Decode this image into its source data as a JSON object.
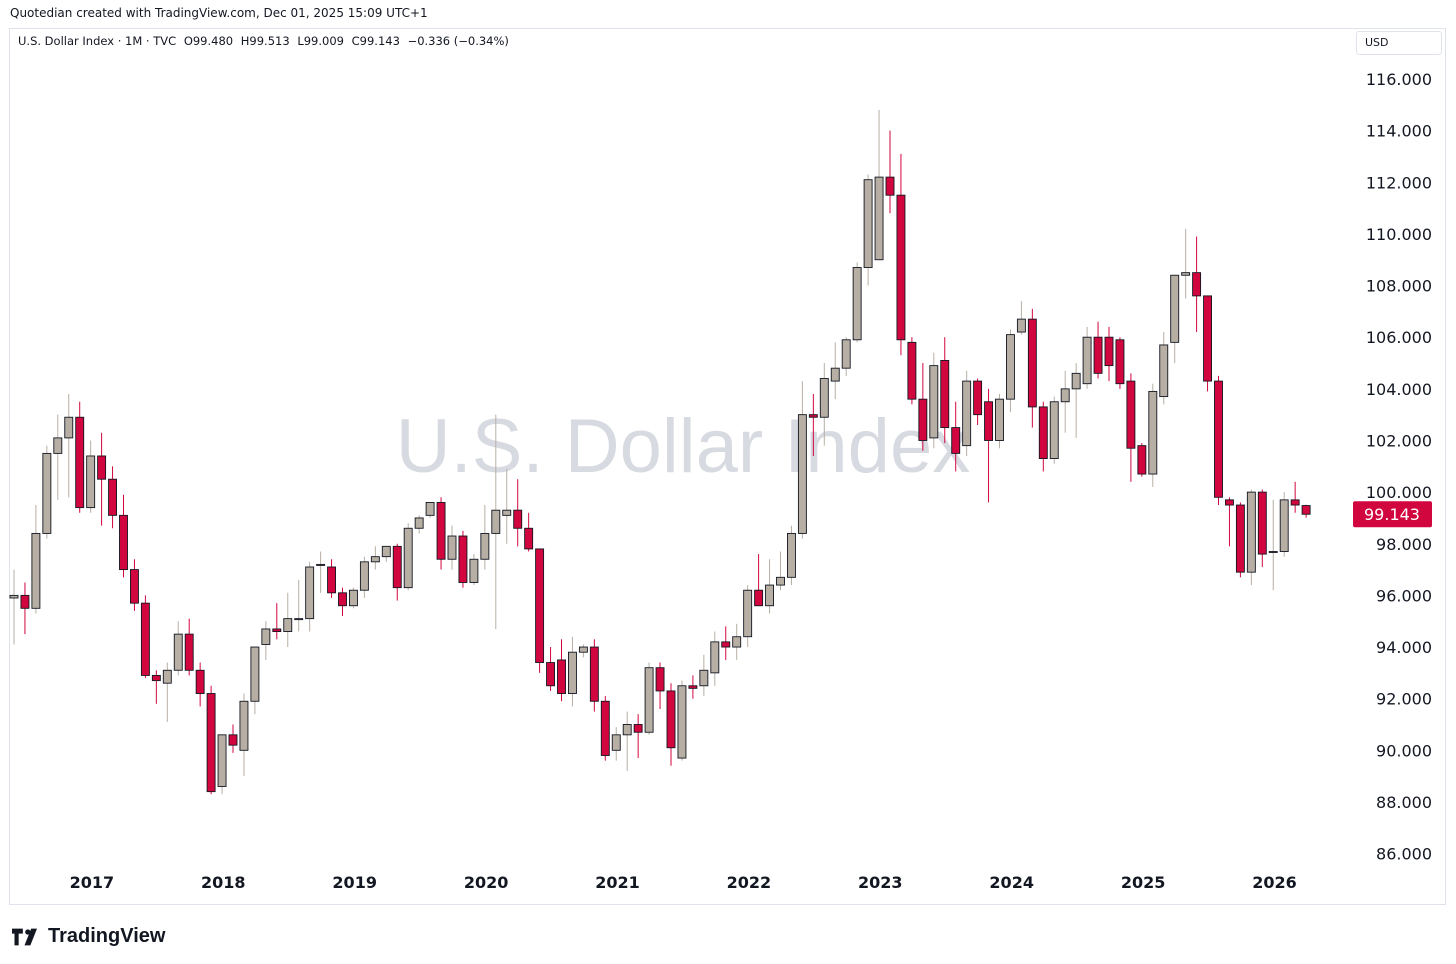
{
  "header": {
    "attribution": "Quotedian created with TradingView.com, Dec 01, 2025 15:09 UTC+1"
  },
  "legend": {
    "symbol": "U.S. Dollar Index · 1M · TVC",
    "open": "O99.480",
    "high": "H99.513",
    "low": "L99.009",
    "close": "C99.143",
    "change": "−0.336 (−0.34%)"
  },
  "currency_button": "USD",
  "watermark": "U.S. Dollar Index",
  "brand": "TradingView",
  "colors": {
    "up": "#b7afa4",
    "down": "#d2063e",
    "price_label_bg": "#d2063e",
    "grid": "#ffffff",
    "axis_text": "#131722"
  },
  "chart_data": {
    "type": "candlestick",
    "interval": "1M",
    "y_axis_ticks": [
      "116.000",
      "114.000",
      "112.000",
      "110.000",
      "108.000",
      "106.000",
      "104.000",
      "102.000",
      "100.000",
      "98.000",
      "96.000",
      "94.000",
      "92.000",
      "90.000",
      "88.000",
      "86.000"
    ],
    "ylim": [
      85,
      117
    ],
    "x_axis_ticks": [
      "2017",
      "2018",
      "2019",
      "2020",
      "2021",
      "2022",
      "2023",
      "2024",
      "2025",
      "2026"
    ],
    "last_price_label": "99.143",
    "candles": [
      {
        "t": "2016-11",
        "o": 95.9,
        "h": 97.0,
        "l": 94.1,
        "c": 96.0
      },
      {
        "t": "2016-12",
        "o": 96.0,
        "h": 96.5,
        "l": 94.5,
        "c": 95.5
      },
      {
        "t": "2017-01",
        "o": 95.5,
        "h": 99.5,
        "l": 95.3,
        "c": 98.4
      },
      {
        "t": "2017-02",
        "o": 98.4,
        "h": 101.8,
        "l": 98.2,
        "c": 101.5
      },
      {
        "t": "2017-03",
        "o": 101.5,
        "h": 103.0,
        "l": 99.7,
        "c": 102.1
      },
      {
        "t": "2017-04",
        "o": 102.1,
        "h": 103.8,
        "l": 99.8,
        "c": 102.9
      },
      {
        "t": "2017-05",
        "o": 102.9,
        "h": 103.5,
        "l": 99.2,
        "c": 99.4
      },
      {
        "t": "2017-06",
        "o": 99.4,
        "h": 102.0,
        "l": 99.2,
        "c": 101.4
      },
      {
        "t": "2017-07",
        "o": 101.4,
        "h": 102.3,
        "l": 98.7,
        "c": 100.5
      },
      {
        "t": "2017-08",
        "o": 100.5,
        "h": 101.0,
        "l": 98.6,
        "c": 99.1
      },
      {
        "t": "2017-09",
        "o": 99.1,
        "h": 99.9,
        "l": 96.7,
        "c": 97.0
      },
      {
        "t": "2017-10",
        "o": 97.0,
        "h": 97.4,
        "l": 95.4,
        "c": 95.7
      },
      {
        "t": "2017-11",
        "o": 95.7,
        "h": 96.0,
        "l": 92.8,
        "c": 92.9
      },
      {
        "t": "2017-12",
        "o": 92.9,
        "h": 93.1,
        "l": 91.8,
        "c": 92.7
      },
      {
        "t": "2018-01",
        "o": 92.6,
        "h": 93.4,
        "l": 91.1,
        "c": 93.1
      },
      {
        "t": "2018-02",
        "o": 93.1,
        "h": 95.0,
        "l": 92.9,
        "c": 94.5
      },
      {
        "t": "2018-03",
        "o": 94.5,
        "h": 95.1,
        "l": 92.9,
        "c": 93.1
      },
      {
        "t": "2018-04",
        "o": 93.1,
        "h": 93.4,
        "l": 91.7,
        "c": 92.2
      },
      {
        "t": "2018-05",
        "o": 92.2,
        "h": 92.5,
        "l": 88.3,
        "c": 88.4
      },
      {
        "t": "2018-06",
        "o": 88.6,
        "h": 90.6,
        "l": 88.3,
        "c": 90.6
      },
      {
        "t": "2018-07",
        "o": 90.6,
        "h": 91.0,
        "l": 89.9,
        "c": 90.2
      },
      {
        "t": "2018-08",
        "o": 90.0,
        "h": 92.2,
        "l": 89.0,
        "c": 91.9
      },
      {
        "t": "2018-09",
        "o": 91.9,
        "h": 94.0,
        "l": 91.4,
        "c": 94.0
      },
      {
        "t": "2018-10",
        "o": 94.1,
        "h": 95.0,
        "l": 93.5,
        "c": 94.7
      },
      {
        "t": "2018-11",
        "o": 94.7,
        "h": 95.7,
        "l": 94.3,
        "c": 94.6
      },
      {
        "t": "2018-12",
        "o": 94.6,
        "h": 96.1,
        "l": 94.0,
        "c": 95.1
      },
      {
        "t": "2019-01",
        "o": 95.1,
        "h": 96.6,
        "l": 94.6,
        "c": 95.1
      },
      {
        "t": "2019-02",
        "o": 95.1,
        "h": 97.3,
        "l": 94.6,
        "c": 97.1
      },
      {
        "t": "2019-03",
        "o": 97.2,
        "h": 97.7,
        "l": 96.1,
        "c": 97.2
      },
      {
        "t": "2019-04",
        "o": 97.1,
        "h": 97.4,
        "l": 95.9,
        "c": 96.1
      },
      {
        "t": "2019-05",
        "o": 96.1,
        "h": 96.3,
        "l": 95.2,
        "c": 95.6
      },
      {
        "t": "2019-06",
        "o": 95.6,
        "h": 96.3,
        "l": 95.5,
        "c": 96.2
      },
      {
        "t": "2019-07",
        "o": 96.2,
        "h": 97.5,
        "l": 95.9,
        "c": 97.3
      },
      {
        "t": "2019-08",
        "o": 97.3,
        "h": 97.9,
        "l": 97.0,
        "c": 97.5
      },
      {
        "t": "2019-09",
        "o": 97.5,
        "h": 97.8,
        "l": 97.3,
        "c": 97.9
      },
      {
        "t": "2019-10",
        "o": 97.9,
        "h": 98.0,
        "l": 95.8,
        "c": 96.3
      },
      {
        "t": "2019-11",
        "o": 96.3,
        "h": 98.8,
        "l": 96.2,
        "c": 98.6
      },
      {
        "t": "2019-12",
        "o": 98.6,
        "h": 99.1,
        "l": 98.4,
        "c": 99.0
      },
      {
        "t": "2020-01",
        "o": 99.1,
        "h": 99.6,
        "l": 99.0,
        "c": 99.6
      },
      {
        "t": "2020-02",
        "o": 99.6,
        "h": 99.8,
        "l": 97.0,
        "c": 97.4
      },
      {
        "t": "2020-03",
        "o": 97.4,
        "h": 98.7,
        "l": 97.0,
        "c": 98.3
      },
      {
        "t": "2020-04",
        "o": 98.3,
        "h": 98.5,
        "l": 96.3,
        "c": 96.5
      },
      {
        "t": "2020-05",
        "o": 96.5,
        "h": 97.6,
        "l": 96.4,
        "c": 97.4
      },
      {
        "t": "2020-06",
        "o": 97.4,
        "h": 99.5,
        "l": 97.0,
        "c": 98.4
      },
      {
        "t": "2020-07",
        "o": 98.4,
        "h": 103.0,
        "l": 94.7,
        "c": 99.3
      },
      {
        "t": "2020-08",
        "o": 99.1,
        "h": 100.9,
        "l": 98.0,
        "c": 99.3
      },
      {
        "t": "2020-09",
        "o": 99.3,
        "h": 100.5,
        "l": 97.9,
        "c": 98.6
      },
      {
        "t": "2020-10",
        "o": 98.6,
        "h": 99.2,
        "l": 97.7,
        "c": 97.8
      },
      {
        "t": "2020-11",
        "o": 97.8,
        "h": 97.8,
        "l": 93.0,
        "c": 93.4
      },
      {
        "t": "2020-12",
        "o": 93.4,
        "h": 94.0,
        "l": 92.3,
        "c": 92.5
      },
      {
        "t": "2021-01",
        "o": 93.5,
        "h": 94.3,
        "l": 91.9,
        "c": 92.2
      },
      {
        "t": "2021-02",
        "o": 92.2,
        "h": 94.4,
        "l": 91.7,
        "c": 93.8
      },
      {
        "t": "2021-03",
        "o": 93.8,
        "h": 94.1,
        "l": 93.6,
        "c": 94.0
      },
      {
        "t": "2021-04",
        "o": 94.0,
        "h": 94.3,
        "l": 91.5,
        "c": 91.9
      },
      {
        "t": "2021-05",
        "o": 91.9,
        "h": 92.1,
        "l": 89.6,
        "c": 89.8
      },
      {
        "t": "2021-06",
        "o": 90.0,
        "h": 90.9,
        "l": 89.6,
        "c": 90.6
      },
      {
        "t": "2021-07",
        "o": 90.6,
        "h": 91.5,
        "l": 89.2,
        "c": 91.0
      },
      {
        "t": "2021-08",
        "o": 91.0,
        "h": 91.4,
        "l": 89.7,
        "c": 90.7
      },
      {
        "t": "2021-09",
        "o": 90.7,
        "h": 93.4,
        "l": 90.6,
        "c": 93.2
      },
      {
        "t": "2021-10",
        "o": 93.2,
        "h": 93.4,
        "l": 91.6,
        "c": 92.3
      },
      {
        "t": "2021-11",
        "o": 92.3,
        "h": 92.6,
        "l": 89.4,
        "c": 90.1
      },
      {
        "t": "2021-12",
        "o": 89.7,
        "h": 92.7,
        "l": 89.6,
        "c": 92.5
      },
      {
        "t": "2022-01",
        "o": 92.5,
        "h": 92.9,
        "l": 92.0,
        "c": 92.4
      },
      {
        "t": "2022-02",
        "o": 92.5,
        "h": 93.7,
        "l": 92.1,
        "c": 93.1
      },
      {
        "t": "2022-03",
        "o": 93.0,
        "h": 94.6,
        "l": 92.5,
        "c": 94.2
      },
      {
        "t": "2022-04",
        "o": 94.2,
        "h": 94.8,
        "l": 93.5,
        "c": 94.0
      },
      {
        "t": "2022-05",
        "o": 94.0,
        "h": 94.9,
        "l": 93.5,
        "c": 94.4
      },
      {
        "t": "2022-06",
        "o": 94.4,
        "h": 96.4,
        "l": 94.0,
        "c": 96.2
      },
      {
        "t": "2022-07",
        "o": 96.2,
        "h": 97.6,
        "l": 95.6,
        "c": 95.6
      },
      {
        "t": "2022-08",
        "o": 95.6,
        "h": 97.4,
        "l": 95.3,
        "c": 96.4
      },
      {
        "t": "2022-09",
        "o": 96.4,
        "h": 97.7,
        "l": 96.2,
        "c": 96.7
      },
      {
        "t": "2022-10",
        "o": 96.7,
        "h": 98.7,
        "l": 96.4,
        "c": 98.4
      },
      {
        "t": "2022-11",
        "o": 98.4,
        "h": 104.3,
        "l": 98.2,
        "c": 103.0
      },
      {
        "t": "2022-12",
        "o": 103.0,
        "h": 103.8,
        "l": 101.4,
        "c": 102.9
      },
      {
        "t": "2023-01",
        "o": 102.9,
        "h": 105.0,
        "l": 101.8,
        "c": 104.4
      },
      {
        "t": "2023-02",
        "o": 104.3,
        "h": 105.8,
        "l": 103.6,
        "c": 104.8
      },
      {
        "t": "2023-03",
        "o": 104.8,
        "h": 106.0,
        "l": 104.5,
        "c": 105.9
      },
      {
        "t": "2023-04",
        "o": 105.9,
        "h": 108.9,
        "l": 105.8,
        "c": 108.7
      },
      {
        "t": "2023-05",
        "o": 108.7,
        "h": 112.3,
        "l": 108.0,
        "c": 112.1
      },
      {
        "t": "2023-06",
        "o": 109.0,
        "h": 114.8,
        "l": 109.0,
        "c": 112.2
      },
      {
        "t": "2023-07",
        "o": 112.2,
        "h": 114.0,
        "l": 110.8,
        "c": 111.5
      },
      {
        "t": "2023-08",
        "o": 111.5,
        "h": 113.1,
        "l": 105.3,
        "c": 105.9
      },
      {
        "t": "2023-09",
        "o": 105.8,
        "h": 106.0,
        "l": 103.4,
        "c": 103.6
      },
      {
        "t": "2023-10",
        "o": 103.6,
        "h": 105.0,
        "l": 101.6,
        "c": 102.0
      },
      {
        "t": "2023-11",
        "o": 102.1,
        "h": 105.4,
        "l": 101.7,
        "c": 104.9
      },
      {
        "t": "2023-12",
        "o": 105.1,
        "h": 106.0,
        "l": 101.9,
        "c": 102.5
      },
      {
        "t": "2024-01",
        "o": 102.5,
        "h": 103.5,
        "l": 100.8,
        "c": 101.5
      },
      {
        "t": "2024-02",
        "o": 101.8,
        "h": 104.7,
        "l": 101.4,
        "c": 104.3
      },
      {
        "t": "2024-03",
        "o": 104.3,
        "h": 104.4,
        "l": 102.6,
        "c": 103.0
      },
      {
        "t": "2024-04",
        "o": 103.5,
        "h": 104.0,
        "l": 99.6,
        "c": 102.0
      },
      {
        "t": "2024-05",
        "o": 102.0,
        "h": 103.8,
        "l": 101.7,
        "c": 103.6
      },
      {
        "t": "2024-06",
        "o": 103.6,
        "h": 106.3,
        "l": 103.1,
        "c": 106.1
      },
      {
        "t": "2024-07",
        "o": 106.2,
        "h": 107.4,
        "l": 106.1,
        "c": 106.7
      },
      {
        "t": "2024-08",
        "o": 106.7,
        "h": 107.1,
        "l": 102.5,
        "c": 103.3
      },
      {
        "t": "2024-09",
        "o": 103.3,
        "h": 103.5,
        "l": 100.8,
        "c": 101.3
      },
      {
        "t": "2024-10",
        "o": 101.3,
        "h": 103.7,
        "l": 101.1,
        "c": 103.5
      },
      {
        "t": "2024-11",
        "o": 103.5,
        "h": 104.7,
        "l": 102.3,
        "c": 104.0
      },
      {
        "t": "2024-12",
        "o": 104.0,
        "h": 105.0,
        "l": 102.1,
        "c": 104.6
      },
      {
        "t": "2025-01",
        "o": 104.2,
        "h": 106.4,
        "l": 104.0,
        "c": 106.0
      },
      {
        "t": "2025-02",
        "o": 106.0,
        "h": 106.6,
        "l": 104.4,
        "c": 104.6
      },
      {
        "t": "2025-03",
        "o": 106.0,
        "h": 106.4,
        "l": 104.3,
        "c": 104.9
      },
      {
        "t": "2025-04",
        "o": 105.9,
        "h": 106.0,
        "l": 104.0,
        "c": 104.2
      },
      {
        "t": "2025-05",
        "o": 104.3,
        "h": 104.6,
        "l": 100.4,
        "c": 101.7
      },
      {
        "t": "2025-06",
        "o": 101.8,
        "h": 101.9,
        "l": 100.6,
        "c": 100.7
      },
      {
        "t": "2025-07",
        "o": 100.7,
        "h": 104.2,
        "l": 100.2,
        "c": 103.9
      },
      {
        "t": "2025-08",
        "o": 103.7,
        "h": 106.2,
        "l": 103.4,
        "c": 105.7
      },
      {
        "t": "2025-09",
        "o": 105.8,
        "h": 108.4,
        "l": 105.0,
        "c": 108.4
      },
      {
        "t": "2025-10",
        "o": 108.4,
        "h": 110.2,
        "l": 107.5,
        "c": 108.5
      },
      {
        "t": "2025-11",
        "o": 108.5,
        "h": 109.9,
        "l": 106.2,
        "c": 107.6
      },
      {
        "t": "2025-12",
        "o": 107.6,
        "h": 107.6,
        "l": 103.9,
        "c": 104.3
      },
      {
        "t": "2026-01",
        "o": 104.3,
        "h": 104.5,
        "l": 99.5,
        "c": 99.8
      },
      {
        "t": "2026-02",
        "o": 99.7,
        "h": 99.8,
        "l": 97.9,
        "c": 99.5
      },
      {
        "t": "2026-03",
        "o": 99.5,
        "h": 99.6,
        "l": 96.7,
        "c": 96.9
      },
      {
        "t": "2026-04",
        "o": 96.9,
        "h": 100.1,
        "l": 96.4,
        "c": 100.0
      },
      {
        "t": "2026-05",
        "o": 100.0,
        "h": 100.1,
        "l": 97.1,
        "c": 97.6
      },
      {
        "t": "2026-06",
        "o": 97.7,
        "h": 99.7,
        "l": 96.2,
        "c": 97.7
      },
      {
        "t": "2026-07",
        "o": 97.7,
        "h": 100.0,
        "l": 97.5,
        "c": 99.7
      },
      {
        "t": "2026-08",
        "o": 99.7,
        "h": 100.4,
        "l": 99.2,
        "c": 99.5
      },
      {
        "t": "2026-09",
        "o": 99.48,
        "h": 99.513,
        "l": 99.009,
        "c": 99.143
      }
    ]
  }
}
